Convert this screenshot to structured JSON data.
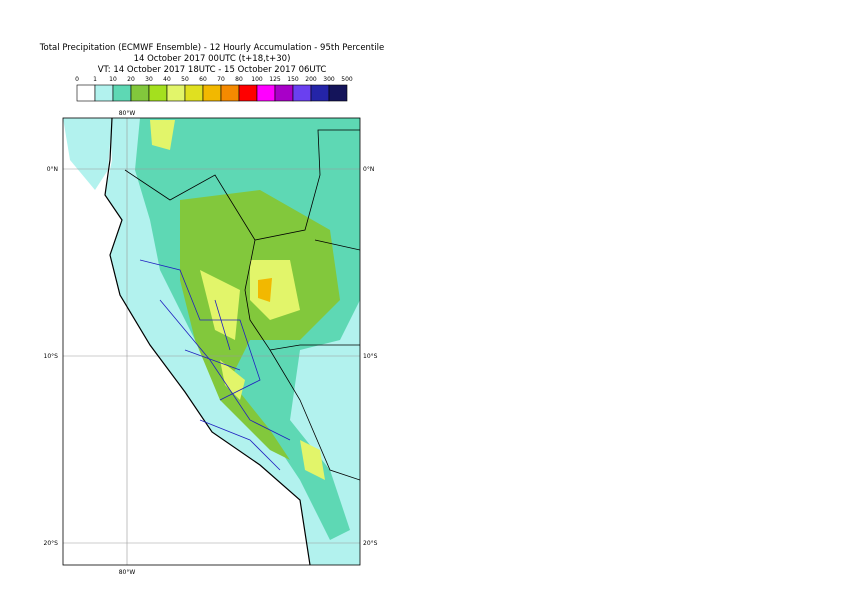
{
  "header": {
    "lines": [
      "Total Precipitation (ECMWF Ensemble) - 12 Hourly Accumulation - 95th Percentile",
      "14 October 2017 00UTC (t+18,t+30)",
      "VT: 14 October 2017 18UTC - 15 October 2017 06UTC"
    ]
  },
  "legend": {
    "labels": [
      "0",
      "1",
      "10",
      "20",
      "30",
      "40",
      "50",
      "60",
      "70",
      "80",
      "100",
      "125",
      "150",
      "200",
      "300",
      "500"
    ],
    "colors": [
      "#ffffff",
      "#b2f2ee",
      "#5ed8b4",
      "#82c83c",
      "#a4e01e",
      "#e2f56a",
      "#e0e020",
      "#f2b800",
      "#f58a00",
      "#ff0000",
      "#ff00ff",
      "#a800c8",
      "#6a40f0",
      "#2424a8",
      "#14145a"
    ]
  },
  "map": {
    "lon_label": "80°W",
    "lat_labels": [
      "0°N",
      "10°S",
      "20°S"
    ]
  }
}
